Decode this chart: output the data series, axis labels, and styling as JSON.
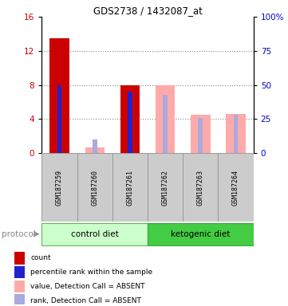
{
  "title": "GDS2738 / 1432087_at",
  "samples": [
    "GSM187259",
    "GSM187260",
    "GSM187261",
    "GSM187262",
    "GSM187263",
    "GSM187264"
  ],
  "left_yaxis": {
    "min": 0,
    "max": 16,
    "ticks": [
      0,
      4,
      8,
      12,
      16
    ],
    "color": "#cc0000"
  },
  "right_yaxis": {
    "min": 0,
    "max": 100,
    "ticks": [
      0,
      25,
      50,
      75,
      100
    ],
    "color": "#0000cc"
  },
  "bars": [
    {
      "sample_idx": 0,
      "count": 13.5,
      "percentile_pct": 50,
      "value_absent": null,
      "rank_absent_pct": null
    },
    {
      "sample_idx": 1,
      "count": null,
      "percentile_pct": null,
      "value_absent": 0.7,
      "rank_absent_pct": 10
    },
    {
      "sample_idx": 2,
      "count": 8.0,
      "percentile_pct": 45,
      "value_absent": null,
      "rank_absent_pct": null
    },
    {
      "sample_idx": 3,
      "count": null,
      "percentile_pct": null,
      "value_absent": 8.0,
      "rank_absent_pct": 43
    },
    {
      "sample_idx": 4,
      "count": null,
      "percentile_pct": null,
      "value_absent": 4.5,
      "rank_absent_pct": 26
    },
    {
      "sample_idx": 5,
      "count": null,
      "percentile_pct": null,
      "value_absent": 4.6,
      "rank_absent_pct": 28
    }
  ],
  "count_color": "#cc0000",
  "percentile_color": "#2222cc",
  "value_absent_color": "#ffaaaa",
  "rank_absent_color": "#aaaadd",
  "sample_box_color": "#cccccc",
  "sample_box_edge": "#999999",
  "ctrl_bg": "#ccffcc",
  "ctrl_edge": "#55bb55",
  "keto_bg": "#44cc44",
  "keto_edge": "#33aa33",
  "legend_items": [
    {
      "label": "count",
      "color": "#cc0000"
    },
    {
      "label": "percentile rank within the sample",
      "color": "#2222cc"
    },
    {
      "label": "value, Detection Call = ABSENT",
      "color": "#ffaaaa"
    },
    {
      "label": "rank, Detection Call = ABSENT",
      "color": "#aaaadd"
    }
  ],
  "bg_color": "#ffffff"
}
